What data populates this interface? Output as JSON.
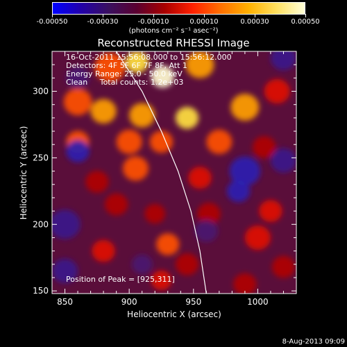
{
  "chart_data": {
    "type": "heatmap",
    "title": "Reconstructed RHESSI Image",
    "xlabel": "Heliocentric X (arcsec)",
    "ylabel": "Heliocentric Y (arcsec)",
    "xlim": [
      840,
      1030
    ],
    "ylim": [
      148,
      330
    ],
    "x_ticks": [
      850,
      900,
      950,
      1000
    ],
    "y_ticks": [
      150,
      200,
      250,
      300
    ],
    "colorbar": {
      "range": [
        -0.0005,
        0.0005
      ],
      "tick_labels": [
        "-0.00050",
        "-0.00030",
        "-0.00010",
        "0.00010",
        "0.00030",
        "0.00050"
      ],
      "units_label": "(photons cm⁻² s⁻¹ asec⁻²)",
      "colors": [
        "#0000ff",
        "#2200aa",
        "#3a1060",
        "#5a0030",
        "#aa0000",
        "#ff2000",
        "#ff7000",
        "#ffb000",
        "#ffe060",
        "#ffffd8"
      ]
    },
    "annotations": [
      "16-Oct-2011 15:56:08.000 to 15:56:12.000",
      "Detectors: 4F 5F 6F 7F 8F, Att 1",
      "Energy Range: 25.0 - 50.0 keV",
      "Clean",
      "Total counts: 1.2e+03"
    ],
    "peak_label": "Position of Peak = [925,311]",
    "peak": {
      "x": 925,
      "y": 311
    },
    "limb_curve": [
      [
        890,
        330
      ],
      [
        910,
        300
      ],
      [
        925,
        270
      ],
      [
        938,
        240
      ],
      [
        948,
        210
      ],
      [
        955,
        180
      ],
      [
        960,
        148
      ]
    ],
    "blobs": [
      {
        "x": 926,
        "y": 311,
        "a": 1.0,
        "s": 9
      },
      {
        "x": 906,
        "y": 322,
        "a": 0.85,
        "s": 9
      },
      {
        "x": 955,
        "y": 320,
        "a": 0.8,
        "s": 11
      },
      {
        "x": 885,
        "y": 318,
        "a": 0.7,
        "s": 12
      },
      {
        "x": 945,
        "y": 280,
        "a": 0.9,
        "s": 9
      },
      {
        "x": 910,
        "y": 282,
        "a": 0.75,
        "s": 10
      },
      {
        "x": 880,
        "y": 285,
        "a": 0.8,
        "s": 10
      },
      {
        "x": 860,
        "y": 292,
        "a": 0.65,
        "s": 11
      },
      {
        "x": 990,
        "y": 288,
        "a": 0.75,
        "s": 11
      },
      {
        "x": 1015,
        "y": 300,
        "a": 0.55,
        "s": 10
      },
      {
        "x": 900,
        "y": 262,
        "a": 0.7,
        "s": 10
      },
      {
        "x": 925,
        "y": 262,
        "a": 0.65,
        "s": 9
      },
      {
        "x": 860,
        "y": 262,
        "a": 0.6,
        "s": 9
      },
      {
        "x": 970,
        "y": 262,
        "a": 0.7,
        "s": 10
      },
      {
        "x": 1005,
        "y": 258,
        "a": 0.45,
        "s": 9
      },
      {
        "x": 905,
        "y": 242,
        "a": 0.65,
        "s": 10
      },
      {
        "x": 875,
        "y": 232,
        "a": 0.45,
        "s": 9
      },
      {
        "x": 955,
        "y": 235,
        "a": 0.55,
        "s": 9
      },
      {
        "x": 890,
        "y": 215,
        "a": 0.45,
        "s": 9
      },
      {
        "x": 920,
        "y": 208,
        "a": 0.4,
        "s": 8
      },
      {
        "x": 1000,
        "y": 190,
        "a": 0.55,
        "s": 10
      },
      {
        "x": 1010,
        "y": 210,
        "a": 0.55,
        "s": 9
      },
      {
        "x": 930,
        "y": 185,
        "a": 0.6,
        "s": 9
      },
      {
        "x": 945,
        "y": 170,
        "a": 0.45,
        "s": 9
      },
      {
        "x": 880,
        "y": 180,
        "a": 0.5,
        "s": 9
      },
      {
        "x": 925,
        "y": 158,
        "a": 0.55,
        "s": 8
      },
      {
        "x": 1020,
        "y": 168,
        "a": 0.45,
        "s": 9
      },
      {
        "x": 990,
        "y": 155,
        "a": 0.4,
        "s": 9
      },
      {
        "x": 962,
        "y": 208,
        "a": 0.4,
        "s": 9
      },
      {
        "x": 850,
        "y": 200,
        "a": -0.35,
        "s": 12
      },
      {
        "x": 990,
        "y": 240,
        "a": -0.4,
        "s": 12
      },
      {
        "x": 985,
        "y": 225,
        "a": -0.45,
        "s": 9
      },
      {
        "x": 860,
        "y": 255,
        "a": -0.4,
        "s": 9
      },
      {
        "x": 850,
        "y": 165,
        "a": -0.35,
        "s": 10
      },
      {
        "x": 1020,
        "y": 248,
        "a": -0.35,
        "s": 10
      },
      {
        "x": 1020,
        "y": 325,
        "a": -0.35,
        "s": 10
      },
      {
        "x": 860,
        "y": 310,
        "a": -0.3,
        "s": 9
      },
      {
        "x": 960,
        "y": 195,
        "a": -0.3,
        "s": 9
      },
      {
        "x": 910,
        "y": 170,
        "a": -0.25,
        "s": 8
      }
    ]
  },
  "footer": {
    "timestamp": "8-Aug-2013 09:09"
  }
}
